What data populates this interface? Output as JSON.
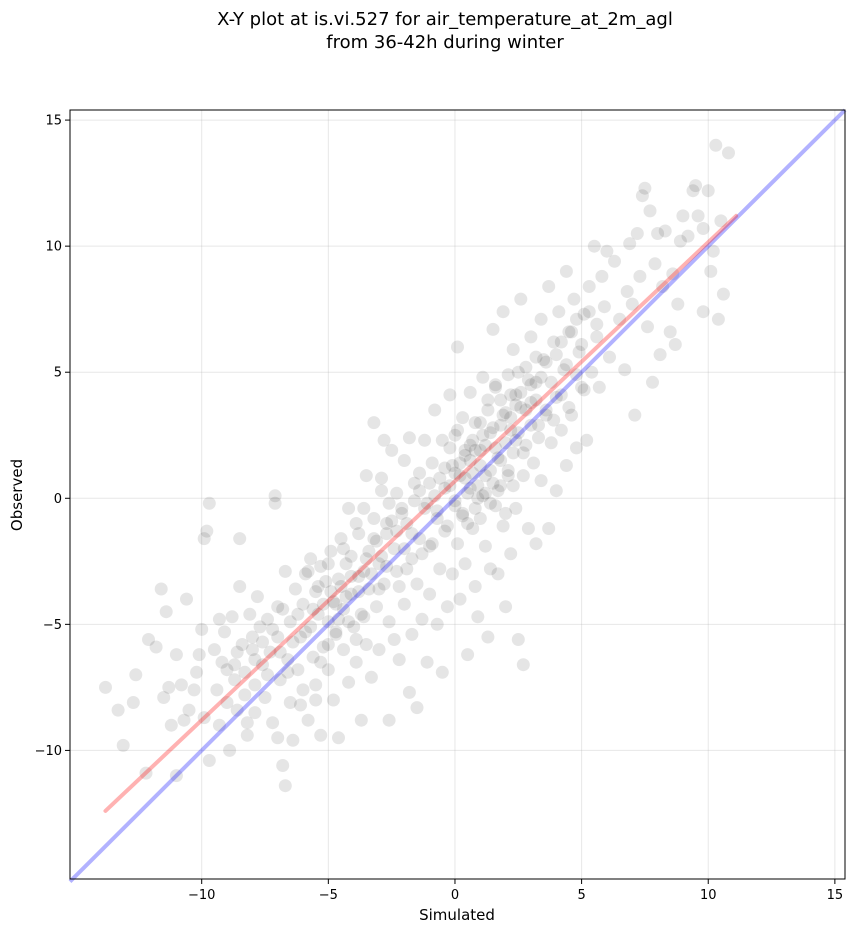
{
  "chart_data": {
    "type": "scatter",
    "title": "X-Y plot at is.vi.527 for air_temperature_at_2m_agl",
    "subtitle": "from 36-42h during winter",
    "xlabel": "Simulated",
    "ylabel": "Observed",
    "xlim": [
      -15.2,
      15.4
    ],
    "ylim": [
      -15.1,
      15.4
    ],
    "xticks": [
      -10,
      -5,
      0,
      5,
      10,
      15
    ],
    "yticks": [
      -10,
      -5,
      0,
      5,
      10,
      15
    ],
    "xtick_labels": [
      "−10",
      "−5",
      "0",
      "5",
      "10",
      "15"
    ],
    "ytick_labels": [
      "−10",
      "−5",
      "0",
      "5",
      "10",
      "15"
    ],
    "grid": true,
    "colors": {
      "points": "#000000",
      "fit_line": "#ff0000",
      "identity_line": "#0000ff"
    },
    "fit_line": {
      "x": [
        -13.8,
        11.1
      ],
      "y": [
        -12.4,
        11.2
      ]
    },
    "identity_line": {
      "x": [
        -15.2,
        15.4
      ],
      "y": [
        -15.2,
        15.4
      ]
    },
    "points": [
      [
        -13.8,
        -7.5
      ],
      [
        -13.3,
        -8.4
      ],
      [
        -13.1,
        -9.8
      ],
      [
        -12.7,
        -8.1
      ],
      [
        -12.6,
        -7.0
      ],
      [
        -12.2,
        -10.9
      ],
      [
        -12.1,
        -5.6
      ],
      [
        -11.8,
        -5.9
      ],
      [
        -11.6,
        -3.6
      ],
      [
        -11.5,
        -7.9
      ],
      [
        -11.4,
        -4.5
      ],
      [
        -11.3,
        -7.5
      ],
      [
        -11.2,
        -9.0
      ],
      [
        -11.0,
        -11.0
      ],
      [
        -11.0,
        -6.2
      ],
      [
        -10.8,
        -7.4
      ],
      [
        -10.7,
        -8.8
      ],
      [
        -10.6,
        -4.0
      ],
      [
        -10.5,
        -8.4
      ],
      [
        -10.2,
        -6.9
      ],
      [
        -10.1,
        -6.2
      ],
      [
        -10.0,
        -5.2
      ],
      [
        -9.9,
        -1.6
      ],
      [
        -9.9,
        -8.7
      ],
      [
        -9.8,
        -1.3
      ],
      [
        -9.7,
        -0.2
      ],
      [
        -9.7,
        -10.4
      ],
      [
        -9.5,
        -6.0
      ],
      [
        -9.4,
        -7.6
      ],
      [
        -9.3,
        -9.0
      ],
      [
        -9.2,
        -6.5
      ],
      [
        -9.1,
        -5.3
      ],
      [
        -9.0,
        -8.1
      ],
      [
        -8.9,
        -10.0
      ],
      [
        -8.8,
        -4.7
      ],
      [
        -8.7,
        -6.6
      ],
      [
        -8.7,
        -7.2
      ],
      [
        -8.6,
        -8.4
      ],
      [
        -8.5,
        -1.6
      ],
      [
        -8.5,
        -3.5
      ],
      [
        -8.4,
        -5.8
      ],
      [
        -8.3,
        -6.9
      ],
      [
        -8.2,
        -9.4
      ],
      [
        -8.1,
        -4.6
      ],
      [
        -8.0,
        -6.0
      ],
      [
        -7.9,
        -7.4
      ],
      [
        -7.9,
        -8.5
      ],
      [
        -7.8,
        -3.9
      ],
      [
        -7.7,
        -5.1
      ],
      [
        -7.6,
        -6.6
      ],
      [
        -7.5,
        -7.9
      ],
      [
        -7.4,
        -4.8
      ],
      [
        -7.3,
        -6.1
      ],
      [
        -7.2,
        -8.9
      ],
      [
        -7.1,
        -0.2
      ],
      [
        -7.1,
        0.1
      ],
      [
        -7.0,
        -4.3
      ],
      [
        -7.0,
        -5.5
      ],
      [
        -6.9,
        -7.2
      ],
      [
        -6.8,
        -10.6
      ],
      [
        -6.7,
        -11.4
      ],
      [
        -6.7,
        -2.9
      ],
      [
        -6.6,
        -6.4
      ],
      [
        -6.5,
        -8.1
      ],
      [
        -6.5,
        -4.9
      ],
      [
        -6.4,
        -9.6
      ],
      [
        -6.3,
        -3.6
      ],
      [
        -6.2,
        -6.8
      ],
      [
        -6.1,
        -5.5
      ],
      [
        -6.0,
        -7.6
      ],
      [
        -6.0,
        -4.2
      ],
      [
        -5.9,
        -3.0
      ],
      [
        -5.8,
        -8.8
      ],
      [
        -5.7,
        -2.4
      ],
      [
        -5.7,
        -5.1
      ],
      [
        -5.6,
        -6.3
      ],
      [
        -5.5,
        -3.7
      ],
      [
        -5.5,
        -7.4
      ],
      [
        -5.4,
        -4.6
      ],
      [
        -5.3,
        -2.7
      ],
      [
        -5.3,
        -9.4
      ],
      [
        -5.2,
        -5.9
      ],
      [
        -5.1,
        -3.3
      ],
      [
        -5.0,
        -4.9
      ],
      [
        -5.0,
        -6.8
      ],
      [
        -4.9,
        -2.1
      ],
      [
        -4.8,
        -4.1
      ],
      [
        -4.8,
        -8.0
      ],
      [
        -4.7,
        -5.4
      ],
      [
        -4.6,
        -3.2
      ],
      [
        -4.6,
        -9.5
      ],
      [
        -4.5,
        -1.6
      ],
      [
        -4.4,
        -6.0
      ],
      [
        -4.4,
        -4.4
      ],
      [
        -4.3,
        -2.6
      ],
      [
        -4.2,
        -7.3
      ],
      [
        -4.2,
        -0.4
      ],
      [
        -4.1,
        -3.8
      ],
      [
        -4.0,
        -5.1
      ],
      [
        -3.9,
        -1.0
      ],
      [
        -3.9,
        -6.5
      ],
      [
        -3.8,
        -3.1
      ],
      [
        -3.7,
        -8.8
      ],
      [
        -3.7,
        -4.6
      ],
      [
        -3.6,
        -0.4
      ],
      [
        -3.5,
        -2.4
      ],
      [
        -3.5,
        -5.8
      ],
      [
        -3.4,
        -3.6
      ],
      [
        -3.3,
        -7.1
      ],
      [
        -3.2,
        -1.6
      ],
      [
        -3.2,
        3.0
      ],
      [
        -3.1,
        -4.3
      ],
      [
        -3.0,
        -2.6
      ],
      [
        -3.0,
        -6.0
      ],
      [
        -2.9,
        0.8
      ],
      [
        -2.8,
        -3.4
      ],
      [
        -2.8,
        2.3
      ],
      [
        -2.7,
        -1.0
      ],
      [
        -2.6,
        -4.9
      ],
      [
        -2.6,
        -8.8
      ],
      [
        -2.5,
        1.9
      ],
      [
        -2.4,
        -2.0
      ],
      [
        -2.4,
        -5.6
      ],
      [
        -2.3,
        0.2
      ],
      [
        -2.2,
        -3.5
      ],
      [
        -2.2,
        -6.4
      ],
      [
        -2.1,
        -0.6
      ],
      [
        -2.0,
        -4.2
      ],
      [
        -2.0,
        1.5
      ],
      [
        -1.9,
        -2.8
      ],
      [
        -1.8,
        -7.7
      ],
      [
        -1.8,
        2.4
      ],
      [
        -1.7,
        -1.4
      ],
      [
        -1.7,
        -5.4
      ],
      [
        -1.6,
        0.6
      ],
      [
        -1.5,
        -8.3
      ],
      [
        -1.5,
        -3.4
      ],
      [
        -1.4,
        1.0
      ],
      [
        -1.3,
        -2.2
      ],
      [
        -1.3,
        -4.8
      ],
      [
        -1.2,
        2.3
      ],
      [
        -1.1,
        -0.2
      ],
      [
        -1.1,
        -6.5
      ],
      [
        -1.0,
        -3.8
      ],
      [
        -0.9,
        1.4
      ],
      [
        -0.9,
        -1.8
      ],
      [
        -0.8,
        3.5
      ],
      [
        -0.7,
        -5.0
      ],
      [
        -0.7,
        -0.5
      ],
      [
        -0.6,
        -2.8
      ],
      [
        -0.5,
        2.3
      ],
      [
        -0.5,
        -6.9
      ],
      [
        -0.4,
        0.4
      ],
      [
        -0.3,
        -4.3
      ],
      [
        -0.3,
        -1.1
      ],
      [
        -0.2,
        4.1
      ],
      [
        -0.1,
        1.3
      ],
      [
        -0.1,
        -3.0
      ],
      [
        0.0,
        -0.3
      ],
      [
        0.0,
        2.5
      ],
      [
        0.1,
        -1.8
      ],
      [
        0.1,
        6.0
      ],
      [
        0.2,
        0.9
      ],
      [
        0.2,
        -4.0
      ],
      [
        0.3,
        -0.6
      ],
      [
        0.3,
        3.2
      ],
      [
        0.4,
        1.7
      ],
      [
        0.4,
        -2.6
      ],
      [
        0.5,
        -6.2
      ],
      [
        0.5,
        0.2
      ],
      [
        0.6,
        2.1
      ],
      [
        0.6,
        4.2
      ],
      [
        0.7,
        -1.2
      ],
      [
        0.7,
        1.0
      ],
      [
        0.8,
        -3.5
      ],
      [
        0.8,
        3.0
      ],
      [
        0.9,
        0.5
      ],
      [
        0.9,
        -4.7
      ],
      [
        1.0,
        1.9
      ],
      [
        1.0,
        -0.8
      ],
      [
        1.1,
        4.8
      ],
      [
        1.1,
        2.5
      ],
      [
        1.2,
        -1.9
      ],
      [
        1.2,
        0.2
      ],
      [
        1.3,
        3.5
      ],
      [
        1.3,
        -5.5
      ],
      [
        1.4,
        1.1
      ],
      [
        1.4,
        -2.8
      ],
      [
        1.5,
        6.7
      ],
      [
        1.5,
        2.8
      ],
      [
        1.6,
        -0.3
      ],
      [
        1.6,
        4.4
      ],
      [
        1.7,
        -3.0
      ],
      [
        1.7,
        1.6
      ],
      [
        1.8,
        0.5
      ],
      [
        1.8,
        3.9
      ],
      [
        1.9,
        -1.1
      ],
      [
        1.9,
        7.4
      ],
      [
        2.0,
        2.2
      ],
      [
        2.0,
        -4.3
      ],
      [
        2.1,
        4.9
      ],
      [
        2.1,
        0.9
      ],
      [
        2.2,
        3.2
      ],
      [
        2.2,
        -2.2
      ],
      [
        2.3,
        5.9
      ],
      [
        2.3,
        1.8
      ],
      [
        2.4,
        -0.4
      ],
      [
        2.4,
        4.1
      ],
      [
        2.5,
        2.6
      ],
      [
        2.5,
        -5.6
      ],
      [
        2.6,
        7.9
      ],
      [
        2.6,
        3.6
      ],
      [
        2.7,
        0.9
      ],
      [
        2.7,
        -6.6
      ],
      [
        2.8,
        5.2
      ],
      [
        2.8,
        2.1
      ],
      [
        2.9,
        -1.2
      ],
      [
        3.0,
        3.8
      ],
      [
        3.0,
        6.4
      ],
      [
        3.1,
        1.4
      ],
      [
        3.2,
        4.6
      ],
      [
        3.2,
        -1.8
      ],
      [
        3.3,
        2.9
      ],
      [
        3.4,
        7.1
      ],
      [
        3.4,
        0.7
      ],
      [
        3.5,
        5.5
      ],
      [
        3.6,
        3.3
      ],
      [
        3.7,
        -1.2
      ],
      [
        3.7,
        8.4
      ],
      [
        3.8,
        2.2
      ],
      [
        3.9,
        6.2
      ],
      [
        4.0,
        4.0
      ],
      [
        4.0,
        0.3
      ],
      [
        4.1,
        7.4
      ],
      [
        4.2,
        2.7
      ],
      [
        4.3,
        5.1
      ],
      [
        4.4,
        9.0
      ],
      [
        4.4,
        1.3
      ],
      [
        4.5,
        6.6
      ],
      [
        4.6,
        3.3
      ],
      [
        4.7,
        7.9
      ],
      [
        4.8,
        2.0
      ],
      [
        4.9,
        5.8
      ],
      [
        5.0,
        4.4
      ],
      [
        5.1,
        7.3
      ],
      [
        5.2,
        2.3
      ],
      [
        5.3,
        8.4
      ],
      [
        5.4,
        5.0
      ],
      [
        5.5,
        10.0
      ],
      [
        5.6,
        6.4
      ],
      [
        5.7,
        4.4
      ],
      [
        5.8,
        8.8
      ],
      [
        5.9,
        7.6
      ],
      [
        6.0,
        9.8
      ],
      [
        6.1,
        5.6
      ],
      [
        6.3,
        9.4
      ],
      [
        6.5,
        7.1
      ],
      [
        6.7,
        5.1
      ],
      [
        6.8,
        8.2
      ],
      [
        7.0,
        7.7
      ],
      [
        7.1,
        3.3
      ],
      [
        7.2,
        10.5
      ],
      [
        7.3,
        8.8
      ],
      [
        7.5,
        12.3
      ],
      [
        7.6,
        6.8
      ],
      [
        7.7,
        11.4
      ],
      [
        7.8,
        4.6
      ],
      [
        7.9,
        9.3
      ],
      [
        8.0,
        10.5
      ],
      [
        8.1,
        5.7
      ],
      [
        8.2,
        8.4
      ],
      [
        8.3,
        10.6
      ],
      [
        8.5,
        6.6
      ],
      [
        8.6,
        8.9
      ],
      [
        8.7,
        6.1
      ],
      [
        8.8,
        7.7
      ],
      [
        9.0,
        11.2
      ],
      [
        9.2,
        10.4
      ],
      [
        9.4,
        12.2
      ],
      [
        9.6,
        11.2
      ],
      [
        9.8,
        7.4
      ],
      [
        10.0,
        12.2
      ],
      [
        10.2,
        9.8
      ],
      [
        10.4,
        7.1
      ],
      [
        10.5,
        11.0
      ],
      [
        10.6,
        8.1
      ],
      [
        10.8,
        13.7
      ],
      [
        10.3,
        14.0
      ],
      [
        9.8,
        10.7
      ],
      [
        9.5,
        12.4
      ],
      [
        8.9,
        10.2
      ],
      [
        7.4,
        12.0
      ],
      [
        6.9,
        10.1
      ],
      [
        10.1,
        9.0
      ],
      [
        -7.9,
        -6.4
      ],
      [
        -8.3,
        -7.8
      ],
      [
        -7.6,
        -5.7
      ],
      [
        -6.9,
        -6.1
      ],
      [
        -6.4,
        -5.7
      ],
      [
        -6.2,
        -4.6
      ],
      [
        -5.9,
        -5.3
      ],
      [
        -5.6,
        -4.4
      ],
      [
        -5.2,
        -4.2
      ],
      [
        -4.9,
        -3.7
      ],
      [
        -4.7,
        -4.2
      ],
      [
        -4.5,
        -3.5
      ],
      [
        -4.3,
        -3.9
      ],
      [
        -4.1,
        -3.1
      ],
      [
        -3.8,
        -3.7
      ],
      [
        -3.6,
        -2.9
      ],
      [
        -3.4,
        -2.1
      ],
      [
        -3.1,
        -1.7
      ],
      [
        -2.9,
        -2.3
      ],
      [
        -2.7,
        -1.4
      ],
      [
        -2.5,
        -0.9
      ],
      [
        -2.3,
        -1.3
      ],
      [
        -2.1,
        -0.4
      ],
      [
        -1.9,
        -1.0
      ],
      [
        -1.6,
        -0.1
      ],
      [
        -1.4,
        0.3
      ],
      [
        -1.2,
        -0.4
      ],
      [
        -1.0,
        0.6
      ],
      [
        -0.8,
        0.1
      ],
      [
        -0.6,
        0.8
      ],
      [
        -0.4,
        1.2
      ],
      [
        -0.2,
        0.5
      ],
      [
        0.0,
        1.0
      ],
      [
        0.2,
        1.4
      ],
      [
        0.4,
        0.8
      ],
      [
        0.6,
        1.5
      ],
      [
        0.8,
        1.9
      ],
      [
        1.0,
        1.3
      ],
      [
        1.2,
        2.1
      ],
      [
        1.4,
        2.6
      ],
      [
        1.6,
        2.0
      ],
      [
        1.8,
        2.9
      ],
      [
        2.0,
        3.4
      ],
      [
        2.2,
        2.7
      ],
      [
        2.4,
        3.7
      ],
      [
        2.6,
        4.2
      ],
      [
        2.8,
        3.5
      ],
      [
        3.0,
        4.5
      ],
      [
        3.2,
        3.9
      ],
      [
        3.4,
        4.8
      ],
      [
        3.6,
        5.4
      ],
      [
        3.8,
        4.6
      ],
      [
        4.0,
        5.7
      ],
      [
        4.2,
        6.2
      ],
      [
        4.4,
        5.3
      ],
      [
        4.6,
        6.6
      ],
      [
        4.8,
        7.1
      ],
      [
        5.0,
        6.1
      ],
      [
        5.3,
        7.4
      ],
      [
        5.6,
        6.9
      ],
      [
        -5.8,
        -2.9
      ],
      [
        -5.4,
        -3.5
      ],
      [
        -5.0,
        -2.6
      ],
      [
        -4.6,
        -4.8
      ],
      [
        -4.2,
        -4.9
      ],
      [
        -3.9,
        -5.6
      ],
      [
        -3.6,
        -4.7
      ],
      [
        -3.3,
        -3.0
      ],
      [
        -3.0,
        -3.6
      ],
      [
        -2.7,
        -2.7
      ],
      [
        -2.3,
        -2.9
      ],
      [
        -2.0,
        -2.0
      ],
      [
        -1.7,
        -2.4
      ],
      [
        -1.4,
        -1.6
      ],
      [
        -1.0,
        -1.9
      ],
      [
        -0.7,
        -0.8
      ],
      [
        -0.4,
        -1.3
      ],
      [
        0.0,
        -0.1
      ],
      [
        0.3,
        -0.7
      ],
      [
        0.6,
        0.4
      ],
      [
        0.9,
        0.0
      ],
      [
        1.2,
        0.9
      ],
      [
        1.5,
        0.6
      ],
      [
        1.8,
        1.5
      ],
      [
        2.1,
        1.1
      ],
      [
        2.4,
        2.3
      ],
      [
        2.7,
        1.8
      ],
      [
        3.0,
        2.9
      ],
      [
        3.3,
        2.4
      ],
      [
        3.6,
        3.5
      ],
      [
        3.9,
        3.1
      ],
      [
        4.2,
        4.1
      ],
      [
        4.5,
        3.6
      ],
      [
        4.8,
        4.9
      ],
      [
        5.1,
        4.3
      ],
      [
        1.0,
        3.0
      ],
      [
        1.3,
        3.9
      ],
      [
        1.6,
        4.5
      ],
      [
        2.2,
        4.1
      ],
      [
        2.5,
        5.0
      ],
      [
        0.7,
        2.3
      ],
      [
        0.4,
        1.9
      ],
      [
        0.1,
        2.7
      ],
      [
        -0.2,
        2.0
      ],
      [
        2.9,
        4.7
      ],
      [
        3.2,
        5.6
      ],
      [
        1.9,
        3.3
      ],
      [
        1.1,
        0.1
      ],
      [
        0.8,
        -0.4
      ],
      [
        0.5,
        -1.0
      ],
      [
        1.4,
        -0.2
      ],
      [
        1.7,
        0.3
      ],
      [
        2.0,
        -0.6
      ],
      [
        2.3,
        0.5
      ],
      [
        -2.6,
        -0.2
      ],
      [
        -2.9,
        0.3
      ],
      [
        -3.2,
        -0.8
      ],
      [
        -3.5,
        0.9
      ],
      [
        -3.8,
        -1.4
      ],
      [
        -4.1,
        -2.3
      ],
      [
        -4.4,
        -2.0
      ],
      [
        -4.7,
        -5.3
      ],
      [
        -5.0,
        -5.8
      ],
      [
        -5.3,
        -6.5
      ],
      [
        -6.6,
        -6.9
      ],
      [
        -6.8,
        -4.4
      ],
      [
        -7.2,
        -5.2
      ],
      [
        -7.4,
        -7.0
      ],
      [
        -8.0,
        -5.5
      ],
      [
        -8.6,
        -6.1
      ],
      [
        -9.0,
        -6.8
      ],
      [
        -9.3,
        -4.8
      ],
      [
        -10.3,
        -7.6
      ],
      [
        -8.2,
        -8.9
      ],
      [
        -7.0,
        -9.5
      ],
      [
        -6.1,
        -8.2
      ],
      [
        -5.5,
        -8.0
      ]
    ]
  }
}
